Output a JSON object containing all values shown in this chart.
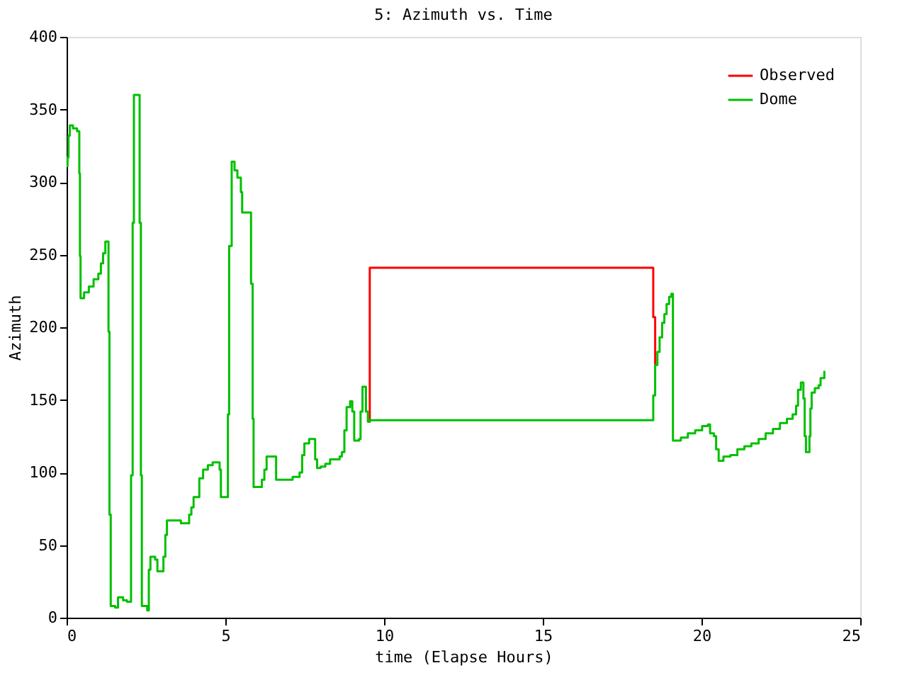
{
  "chart_data": {
    "type": "step",
    "title": "5: Azimuth vs. Time",
    "xlabel": "time (Elapse Hours)",
    "ylabel": "Azimuth",
    "x": [
      0,
      0.03,
      0.06,
      0.1,
      0.2,
      0.33,
      0.4,
      0.42,
      0.44,
      0.55,
      0.7,
      0.85,
      1.0,
      1.08,
      1.15,
      1.22,
      1.32,
      1.35,
      1.39,
      1.53,
      1.62,
      1.78,
      1.9,
      2.03,
      2.08,
      2.12,
      2.3,
      2.34,
      2.37,
      2.54,
      2.59,
      2.64,
      2.79,
      2.86,
      3.01,
      3.05,
      3.11,
      3.16,
      3.6,
      3.86,
      3.93,
      4.0,
      4.18,
      4.3,
      4.45,
      4.6,
      4.82,
      4.86,
      5.08,
      5.12,
      5.2,
      5.29,
      5.38,
      5.49,
      5.53,
      5.81,
      5.86,
      5.89,
      6.15,
      6.23,
      6.3,
      6.6,
      7.12,
      7.34,
      7.42,
      7.49,
      7.64,
      7.83,
      7.89,
      8.0,
      8.15,
      8.3,
      8.6,
      8.67,
      8.75,
      8.82,
      8.93,
      9.0,
      9.06,
      9.21,
      9.26,
      9.32,
      9.43,
      9.49,
      9.55,
      18.48,
      18.54,
      18.61,
      18.68,
      18.76,
      18.83,
      18.9,
      18.98,
      19.05,
      19.1,
      19.16,
      19.35,
      19.57,
      19.8,
      20.02,
      20.2,
      20.27,
      20.39,
      20.46,
      20.54,
      20.69,
      20.91,
      21.13,
      21.35,
      21.57,
      21.8,
      22.02,
      22.25,
      22.47,
      22.69,
      22.87,
      22.98,
      23.04,
      23.13,
      23.21,
      23.25,
      23.29,
      23.4,
      23.43,
      23.47,
      23.57,
      23.69,
      23.75,
      23.87
    ],
    "series": [
      {
        "name": "Observed",
        "color": "#ff0000",
        "values": [
          null,
          null,
          null,
          null,
          null,
          null,
          null,
          null,
          null,
          null,
          null,
          null,
          null,
          null,
          null,
          null,
          null,
          null,
          null,
          null,
          null,
          null,
          null,
          null,
          null,
          null,
          null,
          null,
          null,
          null,
          null,
          null,
          null,
          null,
          null,
          null,
          null,
          null,
          null,
          null,
          null,
          null,
          null,
          null,
          null,
          null,
          null,
          null,
          null,
          null,
          null,
          null,
          null,
          null,
          null,
          null,
          null,
          null,
          null,
          null,
          null,
          null,
          null,
          null,
          null,
          null,
          null,
          null,
          null,
          null,
          null,
          null,
          null,
          null,
          null,
          null,
          null,
          null,
          null,
          null,
          null,
          null,
          null,
          135,
          241,
          207,
          174,
          null,
          null,
          null,
          null,
          null,
          null,
          null,
          null,
          null,
          null,
          null,
          null,
          null,
          null,
          null,
          null,
          null,
          null,
          null,
          null,
          null,
          null,
          null,
          null,
          null,
          null,
          null,
          null,
          null,
          null,
          null,
          null,
          null,
          null,
          null,
          null,
          null,
          null,
          null,
          null,
          null,
          null
        ]
      },
      {
        "name": "Dome",
        "color": "#00c000",
        "values": [
          311,
          317,
          332,
          339,
          337,
          335,
          306,
          249,
          220,
          224,
          228,
          233,
          237,
          244,
          251,
          259,
          197,
          71,
          8,
          7,
          14,
          12,
          11,
          98,
          272,
          360,
          272,
          98,
          8,
          5,
          33,
          42,
          40,
          32,
          32,
          42,
          57,
          67,
          65,
          71,
          76,
          83,
          96,
          102,
          105,
          107,
          102,
          83,
          140,
          256,
          314,
          308,
          303,
          293,
          279,
          230,
          137,
          90,
          95,
          102,
          111,
          95,
          97,
          100,
          112,
          120,
          123,
          109,
          103,
          104,
          106,
          109,
          111,
          114,
          129,
          145,
          149,
          142,
          122,
          123,
          142,
          159,
          142,
          135,
          136,
          153,
          174,
          183,
          193,
          203,
          209,
          216,
          221,
          223,
          122,
          122,
          124,
          127,
          129,
          132,
          133,
          127,
          125,
          116,
          108,
          111,
          112,
          116,
          118,
          120,
          123,
          127,
          130,
          134,
          137,
          140,
          146,
          157,
          162,
          151,
          125,
          114,
          125,
          144,
          155,
          158,
          160,
          165,
          170
        ]
      }
    ],
    "xlim": [
      0,
      25
    ],
    "xticks": [
      0,
      5,
      10,
      15,
      20,
      25
    ],
    "ylim": [
      0,
      400
    ],
    "yticks": [
      0,
      50,
      100,
      150,
      200,
      250,
      300,
      350,
      400
    ],
    "legend": "top right",
    "grid": false
  }
}
